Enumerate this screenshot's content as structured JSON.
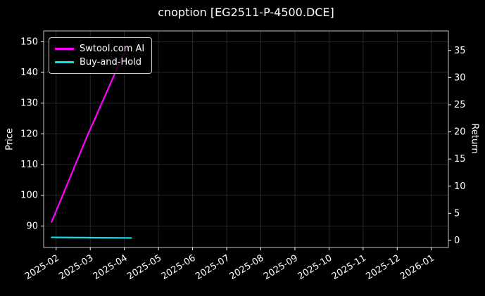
{
  "window": {
    "title": "cnoption [EG2511-P-4500.DCE]"
  },
  "chart_data": {
    "type": "line",
    "title": "cnoption [EG2511-P-4500.DCE]",
    "xlabel": "",
    "ylabel_left": "Price",
    "ylabel_right": "Return",
    "x_ticks": [
      "2025-02",
      "2025-03",
      "2025-04",
      "2025-05",
      "2025-06",
      "2025-07",
      "2025-08",
      "2025-09",
      "2025-10",
      "2025-11",
      "2025-12",
      "2026-01"
    ],
    "xlim": [
      "2025-01-20",
      "2026-01-16"
    ],
    "price_ticks": [
      90,
      100,
      110,
      120,
      130,
      140,
      150
    ],
    "price_ylim": [
      83.0,
      153.5
    ],
    "return_ticks": [
      0,
      5,
      10,
      15,
      20,
      25,
      30,
      35
    ],
    "return_ylim": [
      -1.3,
      38.6
    ],
    "grid": true,
    "legend_position": "upper left",
    "colors": {
      "background": "#000000",
      "grid": "#2e2e2e",
      "spine": "#c0c0c0",
      "text": "#ffffff"
    },
    "series": [
      {
        "name": "Swtool.com AI",
        "color": "#ff00ff",
        "axis": "price",
        "points": [
          [
            "2025-01-27",
            91.3
          ],
          [
            "2025-02-28",
            119.0
          ],
          [
            "2025-04-03",
            148.3
          ]
        ]
      },
      {
        "name": "Buy-and-Hold",
        "color": "#00e5ee",
        "axis": "price",
        "points": [
          [
            "2025-01-27",
            86.3
          ],
          [
            "2025-04-07",
            86.1
          ]
        ]
      }
    ]
  }
}
